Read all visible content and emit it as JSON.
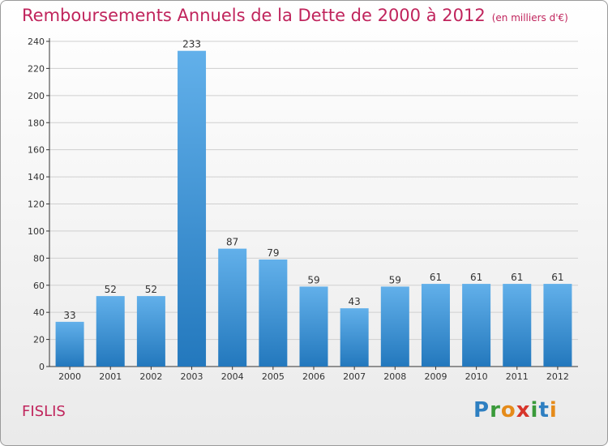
{
  "header": {
    "title": "Remboursements Annuels de la Dette de 2000 à 2012",
    "unit": "(en milliers d'€)"
  },
  "footer": {
    "commune": "FISLIS",
    "logo_letters": [
      "P",
      "r",
      "o",
      "x",
      "i",
      "t",
      "i"
    ],
    "logo_colors": [
      "#2e7fc1",
      "#3a9a3a",
      "#e58b1a",
      "#d7352b",
      "#3a9a3a",
      "#2e7fc1",
      "#e58b1a"
    ]
  },
  "colors": {
    "title": "#c0245c",
    "bar_light": "#62b0ea",
    "bar_dark": "#2378bd",
    "grid": "#cfcfcf",
    "axis": "#333333"
  },
  "chart_data": {
    "type": "bar",
    "title": "Remboursements Annuels de la Dette de 2000 à 2012",
    "categories": [
      "2000",
      "2001",
      "2002",
      "2003",
      "2004",
      "2005",
      "2006",
      "2007",
      "2008",
      "2009",
      "2010",
      "2011",
      "2012"
    ],
    "values": [
      33,
      52,
      52,
      233,
      87,
      79,
      59,
      43,
      59,
      61,
      61,
      61,
      61
    ],
    "ylim": [
      0,
      240
    ],
    "yticks": [
      0,
      20,
      40,
      60,
      80,
      100,
      120,
      140,
      160,
      180,
      200,
      220,
      240
    ],
    "grid": true,
    "xlabel": "",
    "ylabel": ""
  }
}
